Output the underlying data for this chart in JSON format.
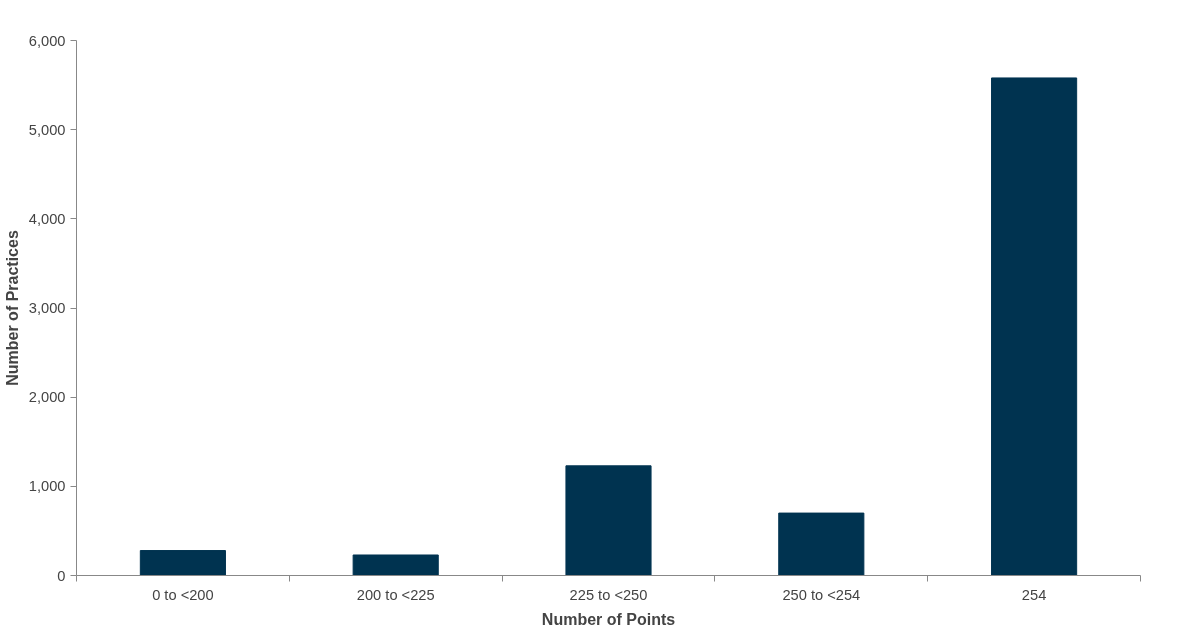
{
  "chart_data": {
    "type": "bar",
    "xlabel": "Number of Points",
    "ylabel": "Number of Practices",
    "categories": [
      "0 to <200",
      "200 to <225",
      "225 to <250",
      "250 to <254",
      "254"
    ],
    "values": [
      280,
      230,
      1230,
      700,
      5580
    ],
    "color": "#003350",
    "ylim": [
      0,
      6000
    ],
    "yticks": [
      0,
      {
        "value": 1000,
        "label": "1,000"
      },
      {
        "value": 2000,
        "label": "2,000"
      },
      {
        "value": 3000,
        "label": "3,000"
      },
      {
        "value": 4000,
        "label": "4,000"
      },
      {
        "value": 5000,
        "label": "5,000"
      },
      {
        "value": 6000,
        "label": "6,000"
      }
    ],
    "grid": false
  }
}
